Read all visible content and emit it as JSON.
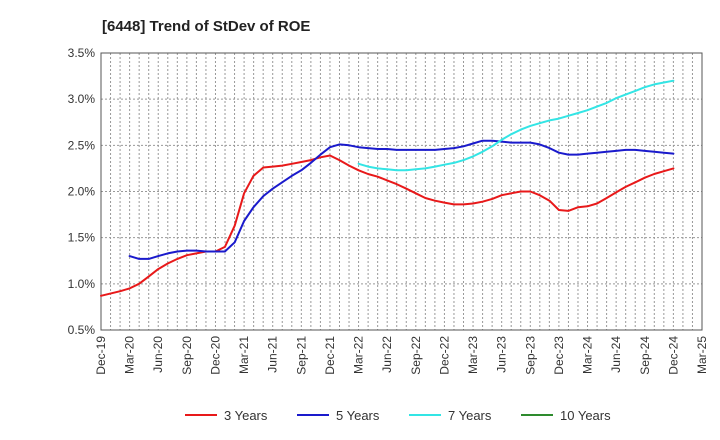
{
  "chart_data": {
    "type": "line",
    "title": "[6448]  Trend of StDev of ROE",
    "xlabel": "",
    "ylabel": "",
    "ylim": [
      0.5,
      3.5
    ],
    "y_ticks": [
      0.5,
      1.0,
      1.5,
      2.0,
      2.5,
      3.0,
      3.5
    ],
    "y_tick_labels": [
      "0.5%",
      "1.0%",
      "1.5%",
      "2.0%",
      "2.5%",
      "3.0%",
      "3.5%"
    ],
    "x_tick_labels": [
      "Dec-19",
      "Mar-20",
      "Jun-20",
      "Sep-20",
      "Dec-20",
      "Mar-21",
      "Jun-21",
      "Sep-21",
      "Dec-21",
      "Mar-22",
      "Jun-22",
      "Sep-22",
      "Dec-22",
      "Mar-23",
      "Jun-23",
      "Sep-23",
      "Dec-23",
      "Mar-24",
      "Jun-24",
      "Sep-24",
      "Dec-24",
      "Mar-25"
    ],
    "grid": true,
    "legend_position": "bottom",
    "series": [
      {
        "name": "3 Years",
        "color": "#e8191a",
        "points": [
          [
            0,
            0.87
          ],
          [
            0.67,
            0.92
          ],
          [
            1,
            0.95
          ],
          [
            1.33,
            1.0
          ],
          [
            1.67,
            1.08
          ],
          [
            2,
            1.16
          ],
          [
            2.33,
            1.22
          ],
          [
            2.67,
            1.27
          ],
          [
            3,
            1.31
          ],
          [
            3.33,
            1.33
          ],
          [
            3.67,
            1.35
          ],
          [
            4,
            1.35
          ],
          [
            4.33,
            1.4
          ],
          [
            4.67,
            1.63
          ],
          [
            5,
            1.98
          ],
          [
            5.33,
            2.17
          ],
          [
            5.67,
            2.26
          ],
          [
            6,
            2.27
          ],
          [
            6.33,
            2.28
          ],
          [
            6.67,
            2.3
          ],
          [
            7,
            2.32
          ],
          [
            7.33,
            2.34
          ],
          [
            7.67,
            2.37
          ],
          [
            8,
            2.39
          ],
          [
            8.33,
            2.34
          ],
          [
            8.67,
            2.28
          ],
          [
            9,
            2.23
          ],
          [
            9.33,
            2.19
          ],
          [
            9.67,
            2.16
          ],
          [
            10,
            2.12
          ],
          [
            10.33,
            2.08
          ],
          [
            10.67,
            2.03
          ],
          [
            11,
            1.98
          ],
          [
            11.33,
            1.93
          ],
          [
            11.67,
            1.9
          ],
          [
            12,
            1.88
          ],
          [
            12.33,
            1.86
          ],
          [
            12.67,
            1.86
          ],
          [
            13,
            1.87
          ],
          [
            13.33,
            1.89
          ],
          [
            13.67,
            1.92
          ],
          [
            14,
            1.96
          ],
          [
            14.33,
            1.98
          ],
          [
            14.67,
            2.0
          ],
          [
            15,
            2.0
          ],
          [
            15.33,
            1.96
          ],
          [
            15.67,
            1.9
          ],
          [
            16,
            1.8
          ],
          [
            16.33,
            1.79
          ],
          [
            16.67,
            1.83
          ],
          [
            17,
            1.84
          ],
          [
            17.33,
            1.87
          ],
          [
            17.67,
            1.93
          ],
          [
            18,
            1.99
          ],
          [
            18.33,
            2.05
          ],
          [
            18.67,
            2.1
          ],
          [
            19,
            2.15
          ],
          [
            19.33,
            2.19
          ],
          [
            19.67,
            2.22
          ],
          [
            20,
            2.25
          ]
        ]
      },
      {
        "name": "5 Years",
        "color": "#1a1acc",
        "points": [
          [
            1,
            1.3
          ],
          [
            1.33,
            1.27
          ],
          [
            1.67,
            1.27
          ],
          [
            2,
            1.3
          ],
          [
            2.33,
            1.33
          ],
          [
            2.67,
            1.35
          ],
          [
            3,
            1.36
          ],
          [
            3.33,
            1.36
          ],
          [
            3.67,
            1.35
          ],
          [
            4,
            1.35
          ],
          [
            4.33,
            1.35
          ],
          [
            4.67,
            1.45
          ],
          [
            5,
            1.68
          ],
          [
            5.33,
            1.83
          ],
          [
            5.67,
            1.95
          ],
          [
            6,
            2.03
          ],
          [
            6.33,
            2.1
          ],
          [
            6.67,
            2.17
          ],
          [
            7,
            2.23
          ],
          [
            7.33,
            2.31
          ],
          [
            7.67,
            2.4
          ],
          [
            8,
            2.48
          ],
          [
            8.33,
            2.51
          ],
          [
            8.67,
            2.5
          ],
          [
            9,
            2.48
          ],
          [
            9.33,
            2.47
          ],
          [
            9.67,
            2.46
          ],
          [
            10,
            2.46
          ],
          [
            10.33,
            2.45
          ],
          [
            10.67,
            2.45
          ],
          [
            11,
            2.45
          ],
          [
            11.33,
            2.45
          ],
          [
            11.67,
            2.45
          ],
          [
            12,
            2.46
          ],
          [
            12.33,
            2.47
          ],
          [
            12.67,
            2.49
          ],
          [
            13,
            2.52
          ],
          [
            13.33,
            2.55
          ],
          [
            13.67,
            2.55
          ],
          [
            14,
            2.54
          ],
          [
            14.33,
            2.53
          ],
          [
            14.67,
            2.53
          ],
          [
            15,
            2.53
          ],
          [
            15.33,
            2.51
          ],
          [
            15.67,
            2.47
          ],
          [
            16,
            2.42
          ],
          [
            16.33,
            2.4
          ],
          [
            16.67,
            2.4
          ],
          [
            17,
            2.41
          ],
          [
            17.33,
            2.42
          ],
          [
            17.67,
            2.43
          ],
          [
            18,
            2.44
          ],
          [
            18.33,
            2.45
          ],
          [
            18.67,
            2.45
          ],
          [
            19,
            2.44
          ],
          [
            19.33,
            2.43
          ],
          [
            19.67,
            2.42
          ],
          [
            20,
            2.41
          ]
        ]
      },
      {
        "name": "7 Years",
        "color": "#33e5e5",
        "points": [
          [
            9,
            2.3
          ],
          [
            9.33,
            2.27
          ],
          [
            9.67,
            2.25
          ],
          [
            10,
            2.24
          ],
          [
            10.33,
            2.23
          ],
          [
            10.67,
            2.23
          ],
          [
            11,
            2.24
          ],
          [
            11.33,
            2.25
          ],
          [
            11.67,
            2.27
          ],
          [
            12,
            2.29
          ],
          [
            12.33,
            2.31
          ],
          [
            12.67,
            2.34
          ],
          [
            13,
            2.38
          ],
          [
            13.33,
            2.43
          ],
          [
            13.67,
            2.49
          ],
          [
            14,
            2.56
          ],
          [
            14.33,
            2.62
          ],
          [
            14.67,
            2.67
          ],
          [
            15,
            2.71
          ],
          [
            15.33,
            2.74
          ],
          [
            15.67,
            2.77
          ],
          [
            16,
            2.79
          ],
          [
            16.33,
            2.82
          ],
          [
            16.67,
            2.85
          ],
          [
            17,
            2.88
          ],
          [
            17.33,
            2.92
          ],
          [
            17.67,
            2.96
          ],
          [
            18,
            3.01
          ],
          [
            18.33,
            3.05
          ],
          [
            18.67,
            3.09
          ],
          [
            19,
            3.13
          ],
          [
            19.33,
            3.16
          ],
          [
            19.67,
            3.18
          ],
          [
            20,
            3.2
          ]
        ]
      },
      {
        "name": "10 Years",
        "color": "#2e8b2e",
        "points": []
      }
    ]
  }
}
